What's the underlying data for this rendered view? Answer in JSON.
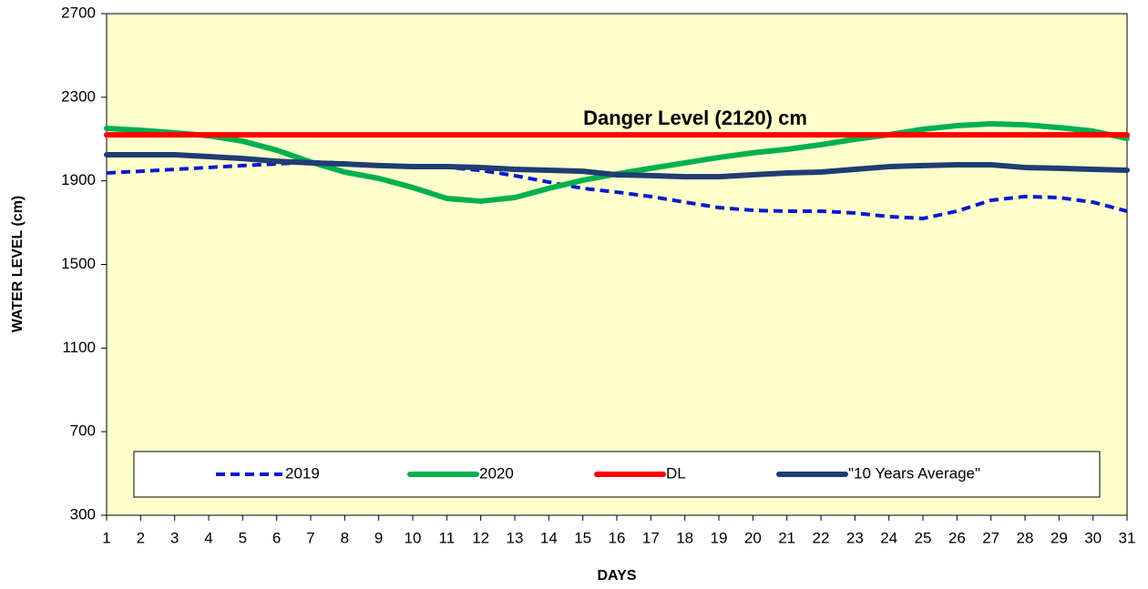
{
  "chart_data": {
    "type": "line",
    "annotation": "Danger Level (2120) cm",
    "xlabel": "DAYS",
    "ylabel": "WATER LEVEL (cm)",
    "x": [
      1,
      2,
      3,
      4,
      5,
      6,
      7,
      8,
      9,
      10,
      11,
      12,
      13,
      14,
      15,
      16,
      17,
      18,
      19,
      20,
      21,
      22,
      23,
      24,
      25,
      26,
      27,
      28,
      29,
      30,
      31
    ],
    "xlim": [
      1,
      31
    ],
    "xticks": [
      1,
      2,
      3,
      4,
      5,
      6,
      7,
      8,
      9,
      10,
      11,
      12,
      13,
      14,
      15,
      16,
      17,
      18,
      19,
      20,
      21,
      22,
      23,
      24,
      25,
      26,
      27,
      28,
      29,
      30,
      31
    ],
    "ylim": [
      300,
      2700
    ],
    "yticks": [
      300,
      700,
      1100,
      1500,
      1900,
      2300,
      2700
    ],
    "grid": false,
    "legend": "bottom",
    "series": [
      {
        "name": "2019",
        "color": "#0a1acc",
        "dash": true,
        "values": [
          1938,
          1946,
          1955,
          1964,
          1973,
          1981,
          1990,
          1985,
          1972,
          1968,
          1965,
          1950,
          1925,
          1894,
          1864,
          1846,
          1825,
          1798,
          1772,
          1759,
          1755,
          1755,
          1746,
          1729,
          1720,
          1755,
          1807,
          1825,
          1820,
          1798,
          1755
        ]
      },
      {
        "name": "2020",
        "color": "#00b050",
        "dash": false,
        "values": [
          2151,
          2142,
          2130,
          2116,
          2090,
          2047,
          1990,
          1942,
          1912,
          1868,
          1816,
          1803,
          1820,
          1864,
          1903,
          1933,
          1960,
          1986,
          2012,
          2034,
          2051,
          2073,
          2099,
          2121,
          2147,
          2164,
          2173,
          2168,
          2155,
          2138,
          2103
        ]
      },
      {
        "name": "DL",
        "color": "#ff0000",
        "dash": false,
        "values": [
          2120,
          2120,
          2120,
          2120,
          2120,
          2120,
          2120,
          2120,
          2120,
          2120,
          2120,
          2120,
          2120,
          2120,
          2120,
          2120,
          2120,
          2120,
          2120,
          2120,
          2120,
          2120,
          2120,
          2120,
          2120,
          2120,
          2120,
          2120,
          2120,
          2120,
          2120
        ]
      },
      {
        "name": "\"10 Years Average\"",
        "color": "#1f3d73",
        "dash": false,
        "values": [
          2025,
          2025,
          2025,
          2016,
          2007,
          1994,
          1986,
          1981,
          1973,
          1968,
          1968,
          1964,
          1955,
          1951,
          1946,
          1929,
          1925,
          1920,
          1920,
          1929,
          1938,
          1942,
          1955,
          1968,
          1973,
          1977,
          1977,
          1964,
          1960,
          1955,
          1951
        ]
      }
    ]
  }
}
